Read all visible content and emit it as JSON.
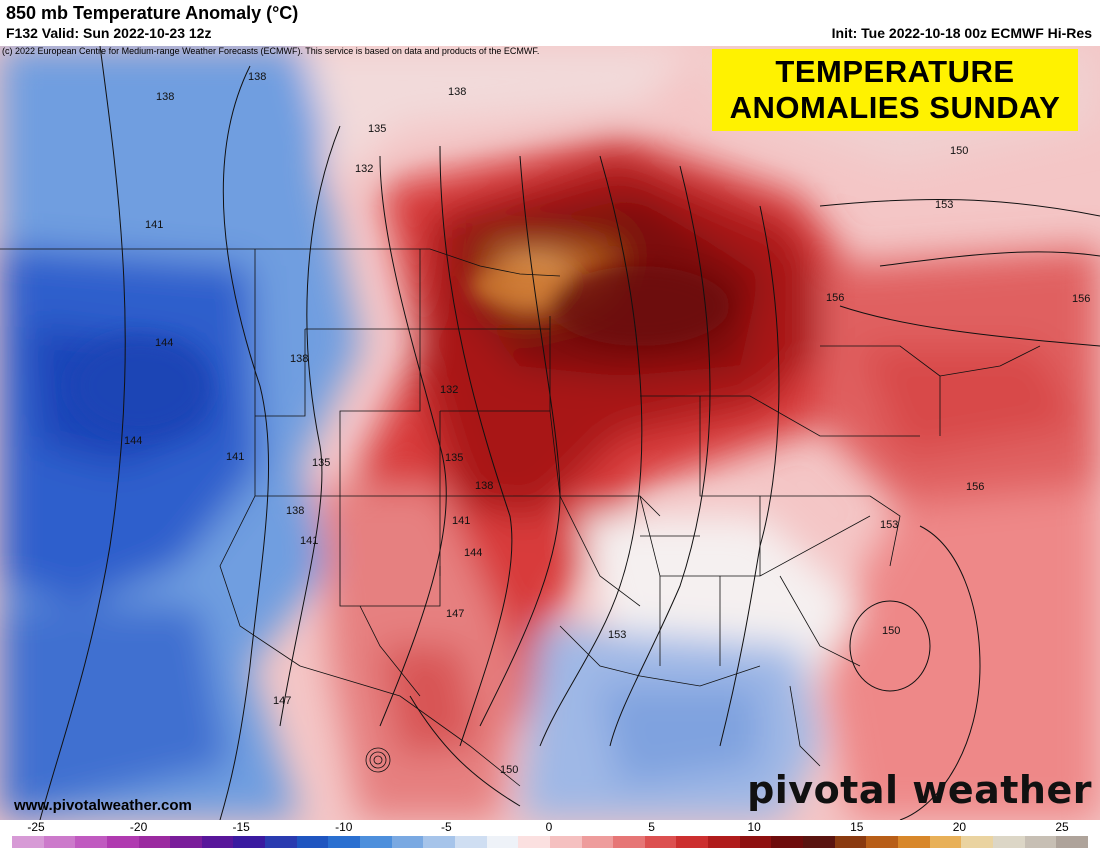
{
  "header": {
    "title": "850 mb Temperature Anomaly (°C)",
    "valid": "F132 Valid: Sun 2022-10-23 12z",
    "init": "Init: Tue 2022-10-18 00z ECMWF Hi-Res",
    "copyright": "(c) 2022 European Centre for Medium-range Weather Forecasts (ECMWF). This service is based on data and products of the ECMWF."
  },
  "banner": {
    "line1": "TEMPERATURE",
    "line2": "ANOMALIES SUNDAY"
  },
  "footer": {
    "website": "www.pivotalweather.com",
    "brand": "pivotal weather"
  },
  "colorbar": {
    "ticks": [
      "-25",
      "-20",
      "-15",
      "-10",
      "-5",
      "0",
      "5",
      "10",
      "15",
      "20",
      "25"
    ],
    "colors": [
      "#d79ad6",
      "#cc7acb",
      "#c05ac0",
      "#b03ab0",
      "#9b2aa0",
      "#7a1d9a",
      "#58169a",
      "#3a1aa0",
      "#2a3bb0",
      "#1f55c0",
      "#2a6fd0",
      "#4d8fdc",
      "#7aa9e2",
      "#a6c4ea",
      "#cfdef2",
      "#eef2f8",
      "#fbe0e0",
      "#f5c0c0",
      "#ee9c9c",
      "#e67676",
      "#dc5050",
      "#cc2f2f",
      "#b01c1c",
      "#8e1010",
      "#6e0c0c",
      "#5a1410",
      "#8a3a10",
      "#b85e18",
      "#d8872a",
      "#e8b058",
      "#ead3a0",
      "#dcd6c6",
      "#c7bfb4",
      "#aea39a"
    ]
  },
  "contour_labels": [
    "138",
    "138",
    "138",
    "135",
    "132",
    "141",
    "144",
    "138",
    "132",
    "135",
    "138",
    "141",
    "144",
    "141",
    "138",
    "141",
    "135",
    "144",
    "147",
    "147",
    "150",
    "153",
    "153",
    "156",
    "156",
    "156",
    "150",
    "150",
    "153"
  ],
  "legend_markers": [
    "anomaly-field",
    "height-contours",
    "state-borders"
  ]
}
